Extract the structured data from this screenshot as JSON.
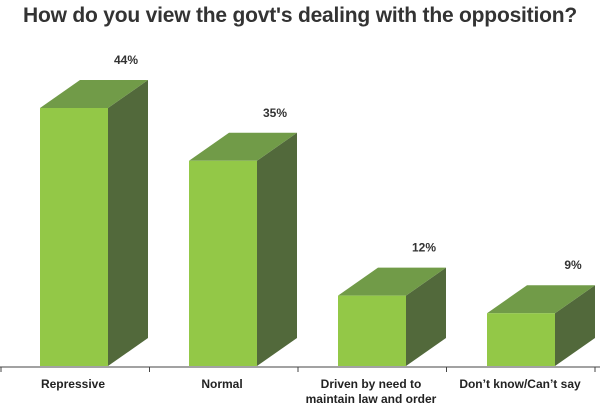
{
  "chart_data": {
    "type": "bar",
    "title": "How do you view the govt's dealing with the opposition?",
    "categories": [
      "Repressive",
      "Normal",
      "Driven by need to maintain law and order",
      "Don't know/Can't say"
    ],
    "category_lines": [
      [
        "Repressive"
      ],
      [
        "Normal"
      ],
      [
        "Driven by need to",
        "maintain law and order"
      ],
      [
        "Don’t know/Can’t say"
      ]
    ],
    "values": [
      44,
      35,
      12,
      9
    ],
    "value_labels": [
      "44%",
      "35%",
      "12%",
      "9%"
    ],
    "ylim": [
      0,
      44
    ],
    "xlabel": "",
    "ylabel": "",
    "grid": false,
    "colors": {
      "front": "#93c847",
      "top": "#719b48",
      "side": "#52693b",
      "axis": "#444444"
    }
  }
}
